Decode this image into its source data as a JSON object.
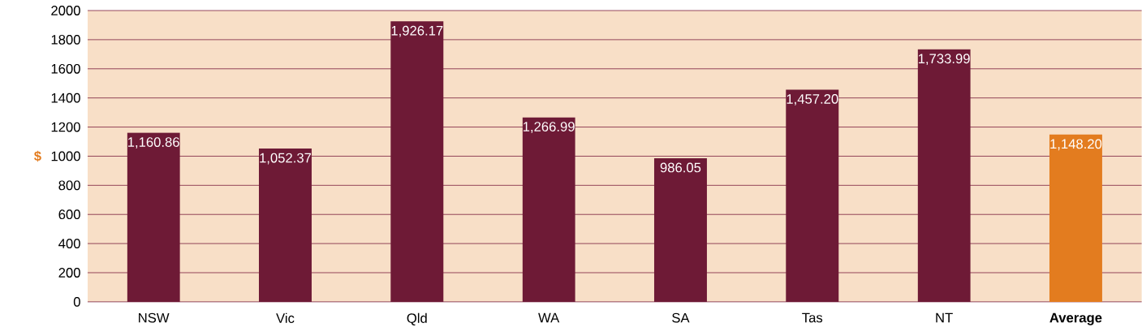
{
  "chart_data": {
    "type": "bar",
    "ylabel": "$",
    "categories": [
      "NSW",
      "Vic",
      "Qld",
      "WA",
      "SA",
      "Tas",
      "NT",
      "**Average**"
    ],
    "values": [
      1160.86,
      1052.37,
      1926.17,
      1266.99,
      986.05,
      1457.2,
      1733.99,
      1148.2
    ],
    "value_labels": [
      "1,160.86",
      "1,052.37",
      "1,926.17",
      "1,266.99",
      "986.05",
      "1,457.20",
      "1,733.99",
      "1,148.20"
    ],
    "colors": [
      "#6e1a36",
      "#6e1a36",
      "#6e1a36",
      "#6e1a36",
      "#6e1a36",
      "#6e1a36",
      "#6e1a36",
      "#e37c1f"
    ],
    "ylim": [
      0,
      2000
    ],
    "yticks": [
      0,
      200,
      400,
      600,
      800,
      1000,
      1200,
      1400,
      1600,
      1800,
      2000
    ],
    "grid": "y"
  }
}
